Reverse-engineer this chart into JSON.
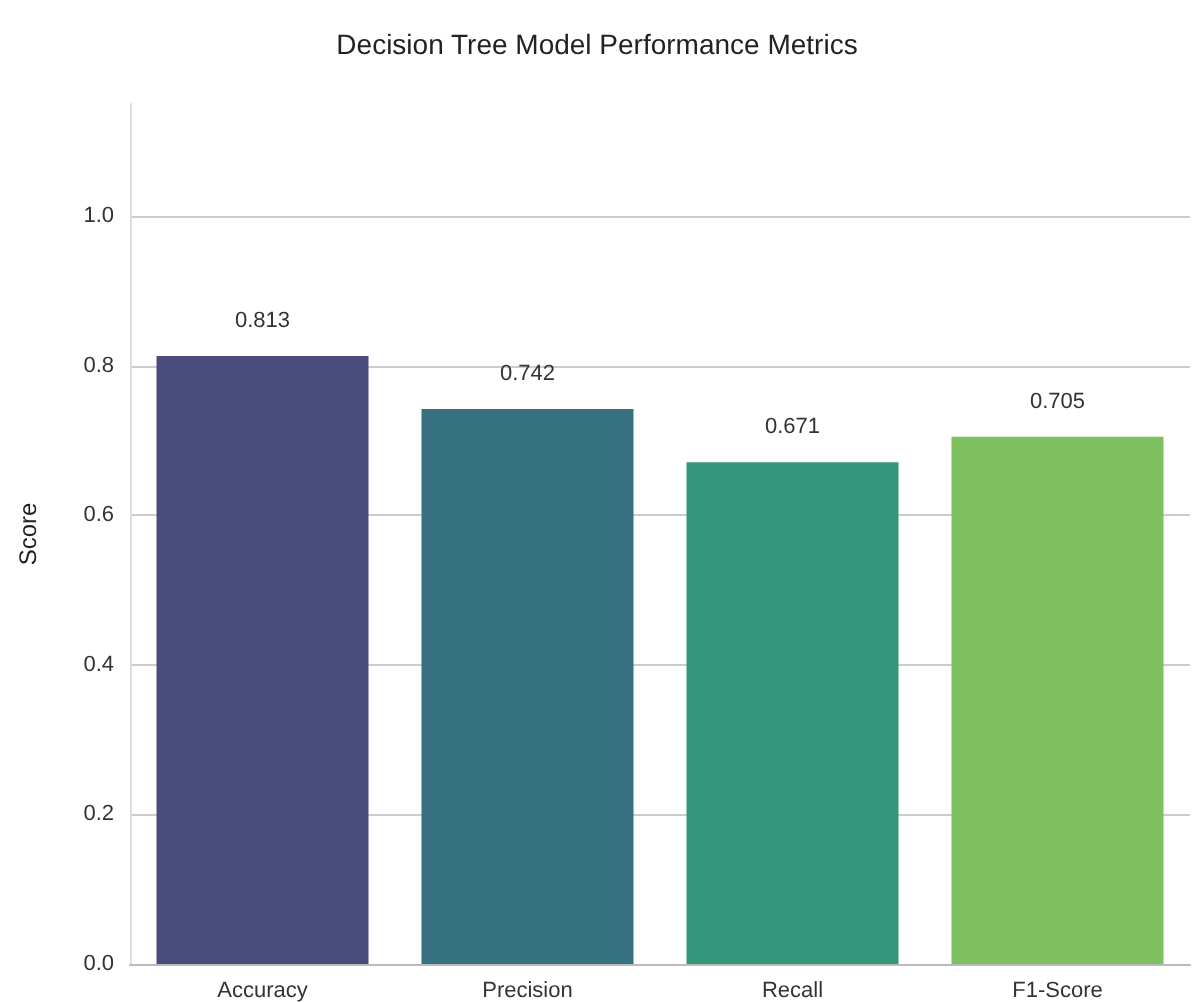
{
  "chart_data": {
    "type": "bar",
    "title": "Decision Tree Model Performance Metrics",
    "ylabel": "Score",
    "categories": [
      "Accuracy",
      "Precision",
      "Recall",
      "F1-Score"
    ],
    "values": [
      0.813,
      0.742,
      0.671,
      0.705
    ],
    "colors": [
      "#4a4c7c",
      "#367180",
      "#34977c",
      "#7fc160"
    ],
    "ylim": [
      0,
      1.15
    ],
    "yticks": [
      {
        "value": 0,
        "label": "0.0"
      },
      0.2,
      0.4,
      0.6,
      0.8,
      {
        "value": 1,
        "label": "1.0"
      }
    ],
    "grid": "y",
    "data_labels": true
  }
}
